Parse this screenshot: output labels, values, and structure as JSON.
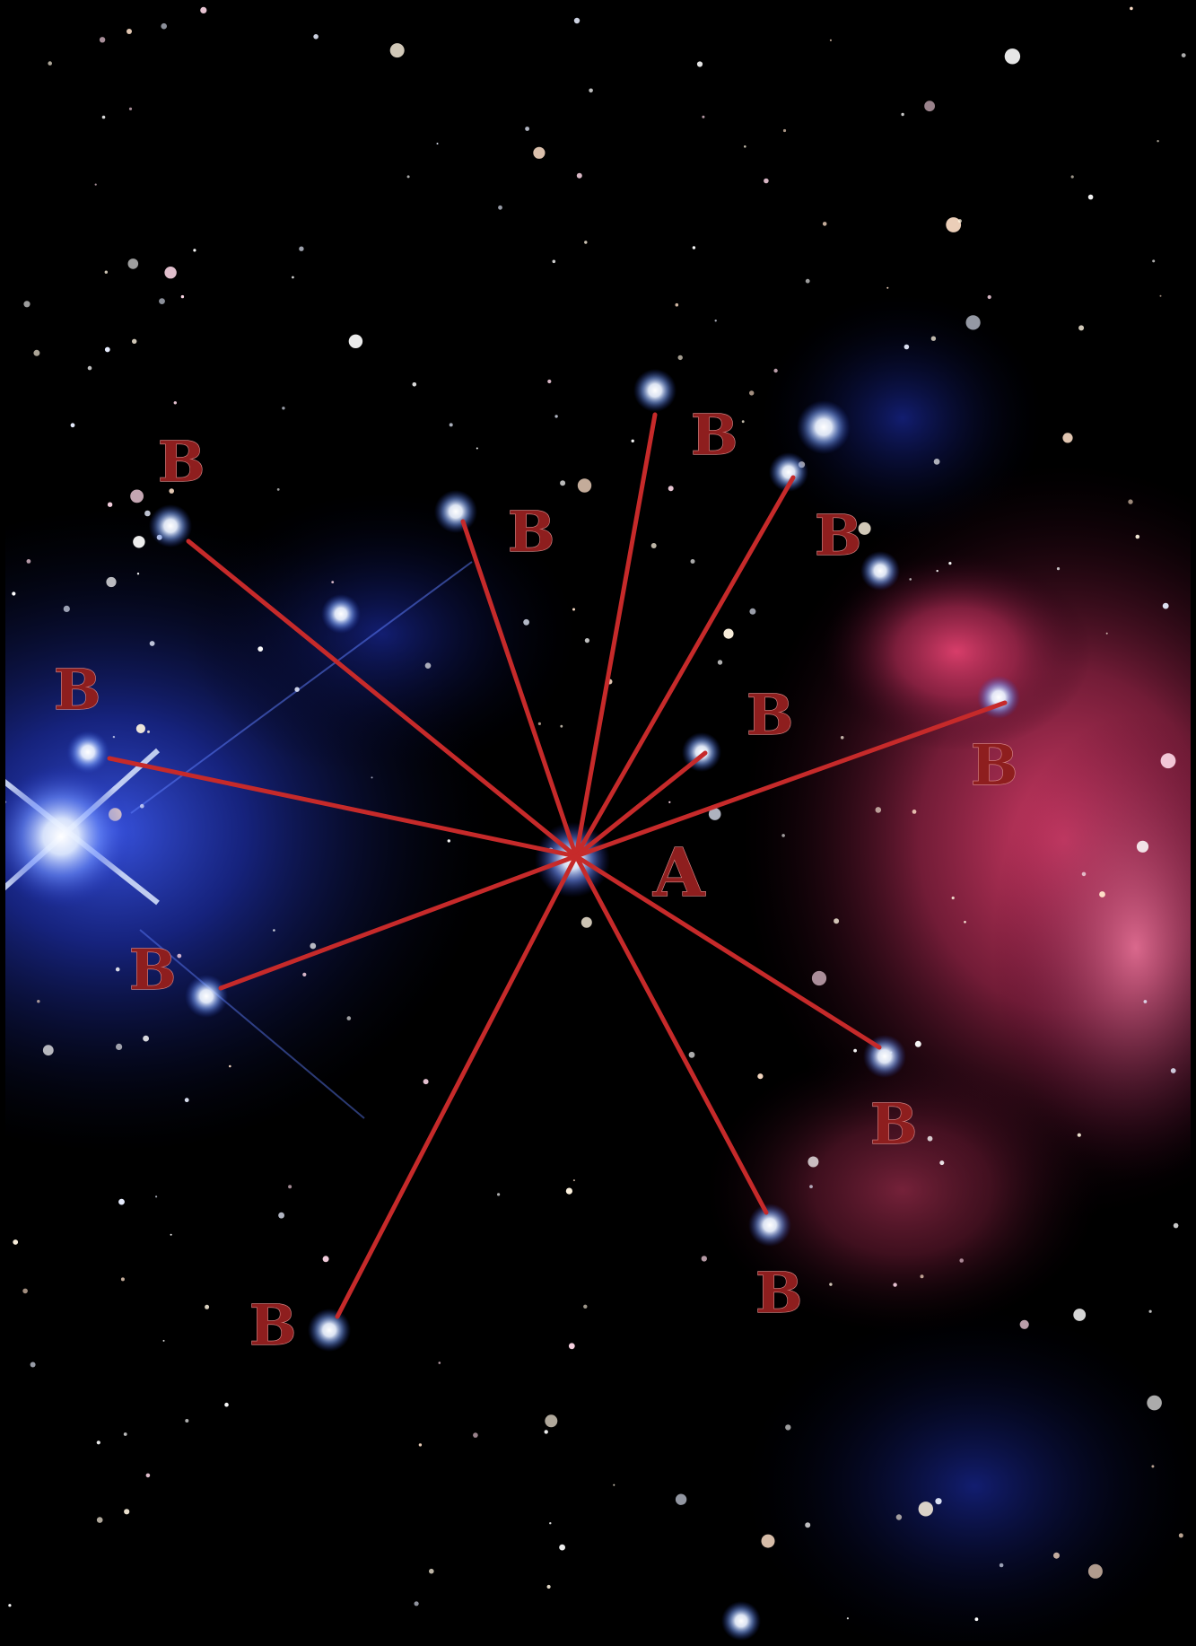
{
  "image": {
    "subject": "star field over blue and red nebula",
    "colors": {
      "background": "#000000",
      "nebula_blue": "#1b2a9a",
      "nebula_red": "#c4305e",
      "line": "#c62a2a",
      "label_fill": "#8e1e1e",
      "label_edge": "#d98a8a"
    }
  },
  "labels": {
    "center": "A",
    "outer": [
      "B",
      "B",
      "B",
      "B",
      "B",
      "B",
      "B",
      "B",
      "B",
      "B",
      "B"
    ]
  }
}
